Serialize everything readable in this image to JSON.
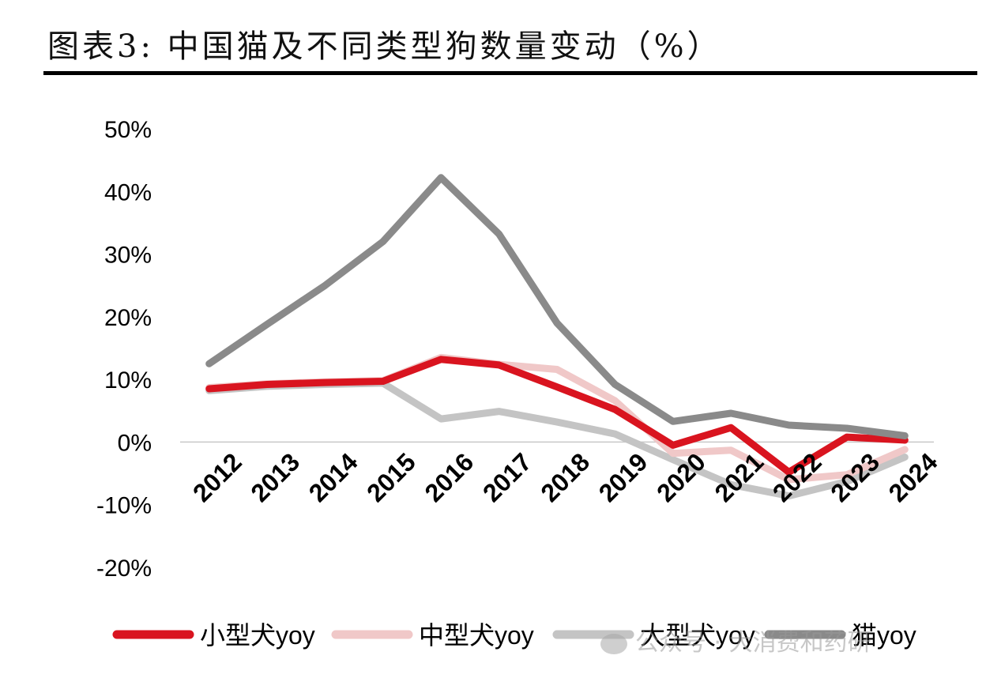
{
  "title": "图表3: 中国猫及不同类型狗数量变动（%）",
  "watermark": "公众号 · 大消费和药研",
  "chart_data": {
    "type": "line",
    "title": "图表3: 中国猫及不同类型狗数量变动（%）",
    "xlabel": "",
    "ylabel": "",
    "ylim": [
      -20,
      50
    ],
    "ytick_step": 10,
    "y_tick_labels": [
      "50%",
      "40%",
      "30%",
      "20%",
      "10%",
      "0%",
      "-10%",
      "-20%"
    ],
    "grid": false,
    "legend_position": "bottom",
    "categories": [
      "2012",
      "2013",
      "2014",
      "2015",
      "2016",
      "2017",
      "2018",
      "2019",
      "2020",
      "2021",
      "2022",
      "2023",
      "2024"
    ],
    "series": [
      {
        "name": "小型犬yoy",
        "color": "#d9141f",
        "values": [
          8.5,
          9.2,
          9.5,
          9.7,
          13.2,
          12.3,
          8.8,
          5.2,
          -0.5,
          2.3,
          -4.8,
          0.8,
          0.3
        ]
      },
      {
        "name": "中型犬yoy",
        "color": "#f0c8c8",
        "values": [
          8.7,
          9.3,
          9.6,
          9.8,
          13.5,
          12.4,
          11.6,
          6.6,
          -1.8,
          -1.3,
          -6.0,
          -5.2,
          -1.2
        ]
      },
      {
        "name": "大型犬yoy",
        "color": "#c4c4c4",
        "values": [
          8.2,
          8.9,
          9.2,
          9.4,
          3.7,
          4.9,
          3.2,
          1.3,
          -2.8,
          -6.8,
          -8.6,
          -6.3,
          -2.4
        ]
      },
      {
        "name": "猫yoy",
        "color": "#8a8a8a",
        "values": [
          12.5,
          18.8,
          25.0,
          32.0,
          42.2,
          33.2,
          19.0,
          9.2,
          3.3,
          4.6,
          2.7,
          2.2,
          1.0
        ]
      }
    ]
  }
}
